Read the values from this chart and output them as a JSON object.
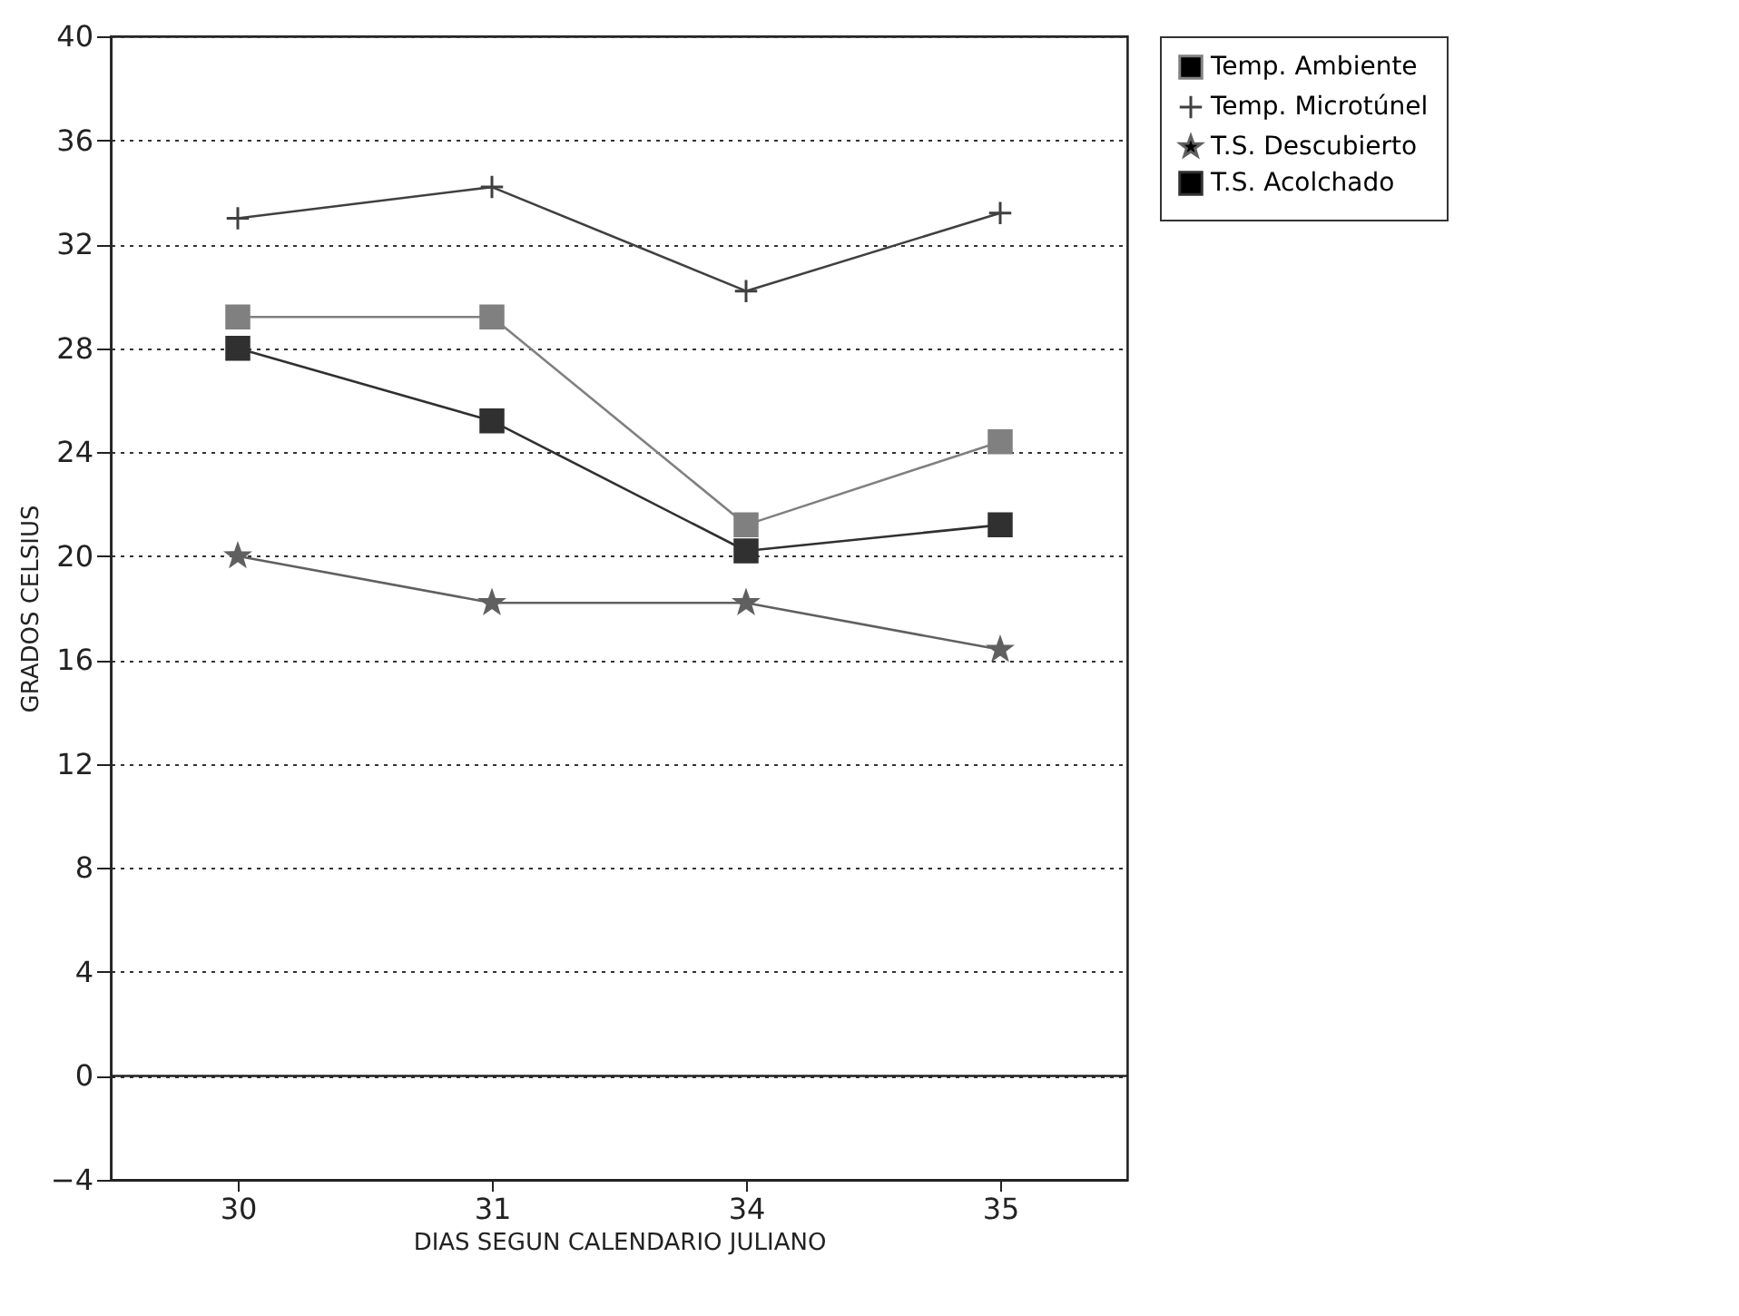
{
  "chart_data": {
    "type": "line",
    "xlabel": "DIAS SEGUN CALENDARIO JULIANO",
    "ylabel": "GRADOS CELSIUS",
    "categories": [
      "30",
      "31",
      "34",
      "35"
    ],
    "ylim": [
      -4,
      40
    ],
    "yticks": [
      -4,
      0,
      4,
      8,
      12,
      16,
      20,
      24,
      28,
      32,
      36,
      40
    ],
    "grid": "y",
    "legend": "right",
    "line_style": "solid",
    "ref_lines": [
      {
        "axis": "y",
        "value": 0
      }
    ],
    "series": [
      {
        "name": "Temp. Ambiente",
        "color": "#808080",
        "marker": "square",
        "values": [
          29.2,
          29.2,
          21.2,
          24.4
        ]
      },
      {
        "name": "Temp. Microtúnel",
        "color": "#404040",
        "marker": "cross",
        "values": [
          33,
          34.2,
          30.2,
          33.2
        ]
      },
      {
        "name": "T.S. Descubierto",
        "color": "#606060",
        "marker": "star",
        "values": [
          20,
          18.2,
          18.2,
          16.4
        ]
      },
      {
        "name": "T.S. Acolchado",
        "color": "#303030",
        "marker": "square",
        "values": [
          28,
          25.2,
          20.2,
          21.2
        ]
      }
    ]
  }
}
